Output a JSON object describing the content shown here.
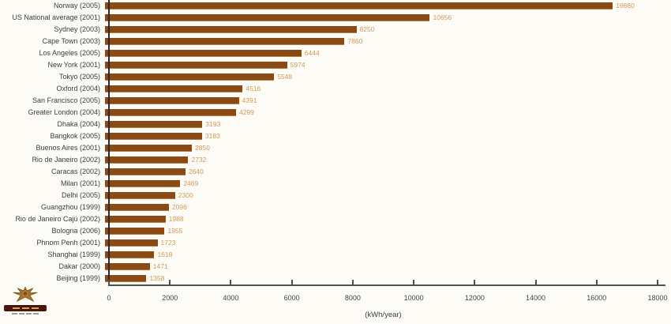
{
  "chart_data": {
    "type": "bar",
    "orientation": "horizontal",
    "title": "",
    "xlabel": "(kWh/year)",
    "xlim": [
      0,
      18000
    ],
    "xticks": [
      0,
      2000,
      4000,
      6000,
      8000,
      10000,
      12000,
      14000,
      16000,
      18000
    ],
    "grid": false,
    "legend": "none",
    "categories": [
      "Norway (2005)",
      "US National average (2001)",
      "Sydney (2003)",
      "Cape Town (2003)",
      "Los Angeles (2005)",
      "New York (2001)",
      "Tokyo (2005)",
      "Oxford (2004)",
      "San Francisco (2005)",
      "Greater London (2004)",
      "Dhaka (2004)",
      "Bangkok (2005)",
      "Buenos Aires (2001)",
      "Rio de Janeiro (2002)",
      "Caracas (2002)",
      "Milan (2001)",
      "Delhi (2005)",
      "Guangzhou (1999)",
      "Rio de Janeiro Cajú (2002)",
      "Bologna (2006)",
      "Phnom Penh (2001)",
      "Shanghai (1999)",
      "Dakar (2000)",
      "Beijing (1999)"
    ],
    "values": [
      16660,
      10656,
      8250,
      7860,
      6444,
      5974,
      5548,
      4516,
      4391,
      4299,
      3193,
      3183,
      2850,
      2732,
      2640,
      2469,
      2300,
      2096,
      1988,
      1955,
      1723,
      1618,
      1471,
      1358
    ],
    "value_labels_shown": true,
    "colors": {
      "bar": "#8a4a15",
      "value_label": "#d09a58",
      "category_label": "#3d3d3d",
      "axis": "#4f4f4f",
      "background": "#fcfbf6"
    }
  }
}
